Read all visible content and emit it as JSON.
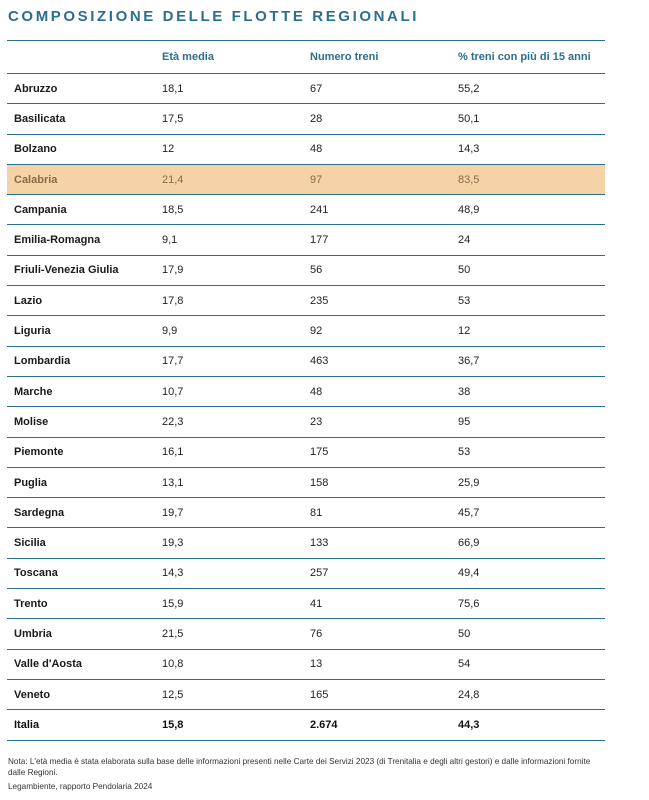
{
  "title": "COMPOSIZIONE DELLE FLOTTE REGIONALI",
  "table": {
    "headers": [
      "",
      "Età media",
      "Numero treni",
      "% treni con più di 15 anni"
    ],
    "rows": [
      [
        "Abruzzo",
        "18,1",
        "67",
        "55,2"
      ],
      [
        "Basilicata",
        "17,5",
        "28",
        "50,1"
      ],
      [
        "Bolzano",
        "12",
        "48",
        "14,3"
      ],
      [
        "Calabria",
        "21,4",
        "97",
        "83,5"
      ],
      [
        "Campania",
        "18,5",
        "241",
        "48,9"
      ],
      [
        "Emilia-Romagna",
        "9,1",
        "177",
        "24"
      ],
      [
        "Friuli-Venezia Giulia",
        "17,9",
        "56",
        "50"
      ],
      [
        "Lazio",
        "17,8",
        "235",
        "53"
      ],
      [
        "Liguria",
        "9,9",
        "92",
        "12"
      ],
      [
        "Lombardia",
        "17,7",
        "463",
        "36,7"
      ],
      [
        "Marche",
        "10,7",
        "48",
        "38"
      ],
      [
        "Molise",
        "22,3",
        "23",
        "95"
      ],
      [
        "Piemonte",
        "16,1",
        "175",
        "53"
      ],
      [
        "Puglia",
        "13,1",
        "158",
        "25,9"
      ],
      [
        "Sardegna",
        "19,7",
        "81",
        "45,7"
      ],
      [
        "Sicilia",
        "19,3",
        "133",
        "66,9"
      ],
      [
        "Toscana",
        "14,3",
        "257",
        "49,4"
      ],
      [
        "Trento",
        "15,9",
        "41",
        "75,6"
      ],
      [
        "Umbria",
        "21,5",
        "76",
        "50"
      ],
      [
        "Valle d'Aosta",
        "10,8",
        "13",
        "54"
      ],
      [
        "Veneto",
        "12,5",
        "165",
        "24,8"
      ]
    ],
    "total": [
      "Italia",
      "15,8",
      "2.674",
      "44,3"
    ],
    "highlight_row": "Calabria",
    "colors": {
      "accent": "#2b6f8e",
      "highlight": "#f6d3a6",
      "highlight_text": "#8a6a48"
    }
  },
  "note": "Nota: L'età media è stata elaborata sulla base delle informazioni presenti nelle Carte dei Servizi 2023 (di Trenitalia e degli altri gestori) e dalle informazioni fornite dalle Regioni.",
  "source": "Legambiente, rapporto Pendolaria 2024"
}
